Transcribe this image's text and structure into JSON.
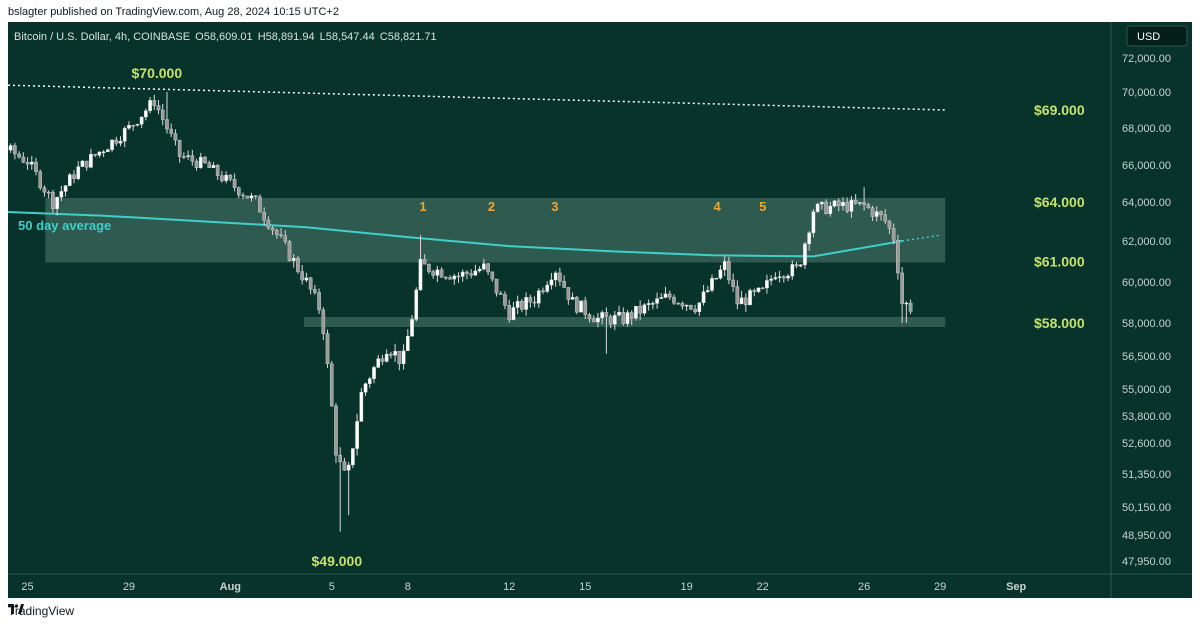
{
  "header": {
    "credit": "bslagter published on TradingView.com, Aug 28, 2024 10:15 UTC+2"
  },
  "legend": {
    "symbol": "Bitcoin / U.S. Dollar, 4h, COINBASE",
    "open": "O58,609.01",
    "high": "H58,891.94",
    "low": "L58,547.44",
    "close": "C58,821.71"
  },
  "footer": {
    "brand": "TradingView"
  },
  "colors": {
    "background": "#07332a",
    "candle": "#d9d9d9",
    "moving_average": "#3fd0c9",
    "zone_fill": "#4f7a6d",
    "annotation_green": "#c5e26f",
    "annotation_orange": "#f2a531",
    "axis_text": "#c8d4cf"
  },
  "chart_data": {
    "type": "candlestick",
    "timeframe": "4h",
    "symbol": "Bitcoin / U.S. Dollar",
    "exchange": "COINBASE",
    "currency_label": "USD",
    "y_axis_ticks": [
      "72,000.00",
      "70,000.00",
      "68,000.00",
      "66,000.00",
      "64,000.00",
      "62,000.00",
      "60,000.00",
      "58,000.00",
      "56,500.00",
      "55,000.00",
      "53,800.00",
      "52,600.00",
      "51,350.00",
      "50,150.00",
      "48,950.00",
      "47,950.00"
    ],
    "x_axis_ticks": [
      "22",
      "25",
      "29",
      "Aug",
      "5",
      "8",
      "12",
      "15",
      "19",
      "22",
      "26",
      "29",
      "Sep"
    ],
    "x_tick_days": [
      -10,
      -7,
      -3,
      1,
      5,
      8,
      12,
      15,
      19,
      22,
      26,
      29,
      32
    ],
    "ohlc_anchors_day_close": [
      [
        -11,
        66500
      ],
      [
        -9,
        67800
      ],
      [
        -7,
        66200
      ],
      [
        -6,
        64000
      ],
      [
        -5,
        65800
      ],
      [
        -3,
        68000
      ],
      [
        -2,
        69500
      ],
      [
        -1,
        66500
      ],
      [
        0,
        66000
      ],
      [
        2,
        64000
      ],
      [
        3,
        62000
      ],
      [
        4,
        60000
      ],
      [
        4.6,
        58500
      ],
      [
        5.2,
        52000
      ],
      [
        5.6,
        51000
      ],
      [
        6.2,
        55000
      ],
      [
        7.2,
        57000
      ],
      [
        7.8,
        56200
      ],
      [
        8.2,
        58500
      ],
      [
        8.5,
        60800
      ],
      [
        10,
        60300
      ],
      [
        11,
        60700
      ],
      [
        12,
        58500
      ],
      [
        13,
        59200
      ],
      [
        13.8,
        60700
      ],
      [
        14.5,
        59000
      ],
      [
        15.5,
        58200
      ],
      [
        16.5,
        58200
      ],
      [
        18.3,
        59300
      ],
      [
        19.4,
        58800
      ],
      [
        20.5,
        60800
      ],
      [
        21,
        59000
      ],
      [
        22,
        59500
      ],
      [
        22.5,
        60500
      ],
      [
        23.4,
        60600
      ],
      [
        24,
        63600
      ],
      [
        25,
        63800
      ],
      [
        26,
        63800
      ],
      [
        26.8,
        63100
      ],
      [
        27.2,
        62100
      ],
      [
        27.5,
        59000
      ],
      [
        27.8,
        58800
      ]
    ],
    "moving_average": {
      "label": "50 day average",
      "points": [
        [
          -12,
          63650
        ],
        [
          -8,
          63500
        ],
        [
          -4,
          63300
        ],
        [
          0,
          63000
        ],
        [
          4,
          62700
        ],
        [
          8,
          62200
        ],
        [
          12,
          61750
        ],
        [
          16,
          61500
        ],
        [
          20,
          61300
        ],
        [
          24,
          61250
        ],
        [
          27.5,
          62000
        ],
        [
          29,
          62300
        ]
      ]
    },
    "annotations": [
      {
        "label": "$70.000",
        "price": 70000,
        "kind": "swing-high"
      },
      {
        "label": "$49.000",
        "price": 49000,
        "kind": "swing-low"
      },
      {
        "label": "$69.000",
        "price": 69000,
        "kind": "trendline"
      },
      {
        "label": "$64.000",
        "price": 64000,
        "kind": "zone-top"
      },
      {
        "label": "$61.000",
        "price": 61000,
        "kind": "zone-bottom"
      },
      {
        "label": "$58.000",
        "price": 58000,
        "kind": "support"
      }
    ],
    "touches": [
      "1",
      "2",
      "3",
      "4",
      "5"
    ],
    "touch_days": [
      8.6,
      11.3,
      13.8,
      20.2,
      22
    ]
  }
}
